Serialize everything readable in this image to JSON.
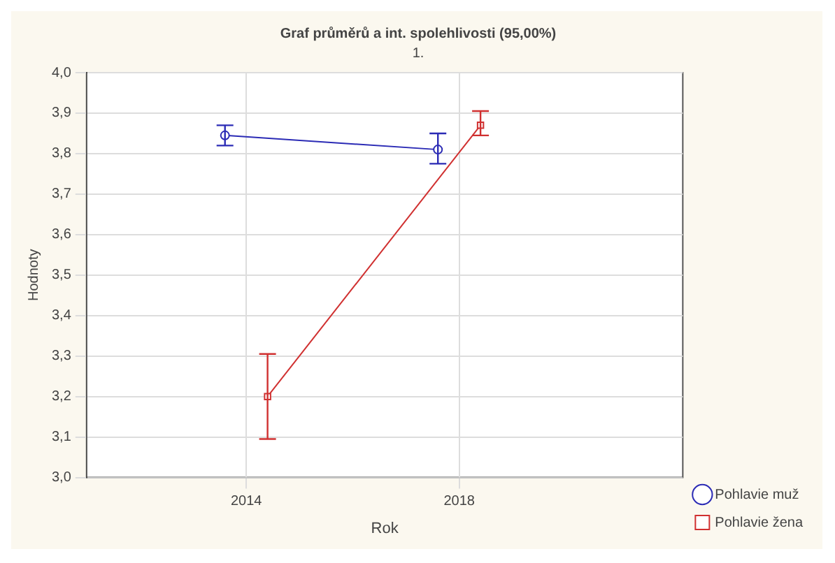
{
  "chart_data": {
    "type": "line",
    "title": "Graf průměrů a int. spolehlivosti (95,00%)",
    "subtitle": "1.",
    "xlabel": "Rok",
    "ylabel": "Hodnoty",
    "categories": [
      "2014",
      "2018"
    ],
    "series": [
      {
        "name": "Pohlavie muž",
        "color": "#2b2bb5",
        "values": [
          3.845,
          3.81
        ],
        "errors": [
          [
            3.82,
            3.87
          ],
          [
            3.775,
            3.85
          ]
        ],
        "marker": "circle"
      },
      {
        "name": "Pohlavie žena",
        "color": "#d03030",
        "values": [
          3.2,
          3.87
        ],
        "errors": [
          [
            3.095,
            3.305
          ],
          [
            3.845,
            3.905
          ]
        ],
        "marker": "square"
      }
    ],
    "ylim": [
      3.0,
      4.0
    ],
    "yticks": [
      {
        "value": 3.0,
        "label": "3,0"
      },
      {
        "value": 3.1,
        "label": "3,1"
      },
      {
        "value": 3.2,
        "label": "3,2"
      },
      {
        "value": 3.3,
        "label": "3,3"
      },
      {
        "value": 3.4,
        "label": "3,4"
      },
      {
        "value": 3.5,
        "label": "3,5"
      },
      {
        "value": 3.6,
        "label": "3,6"
      },
      {
        "value": 3.7,
        "label": "3,7"
      },
      {
        "value": 3.8,
        "label": "3,8"
      },
      {
        "value": 3.9,
        "label": "3,9"
      },
      {
        "value": 4.0,
        "label": "4,0"
      }
    ],
    "grid": true,
    "legend": "bottom right",
    "line_style": "solid"
  }
}
